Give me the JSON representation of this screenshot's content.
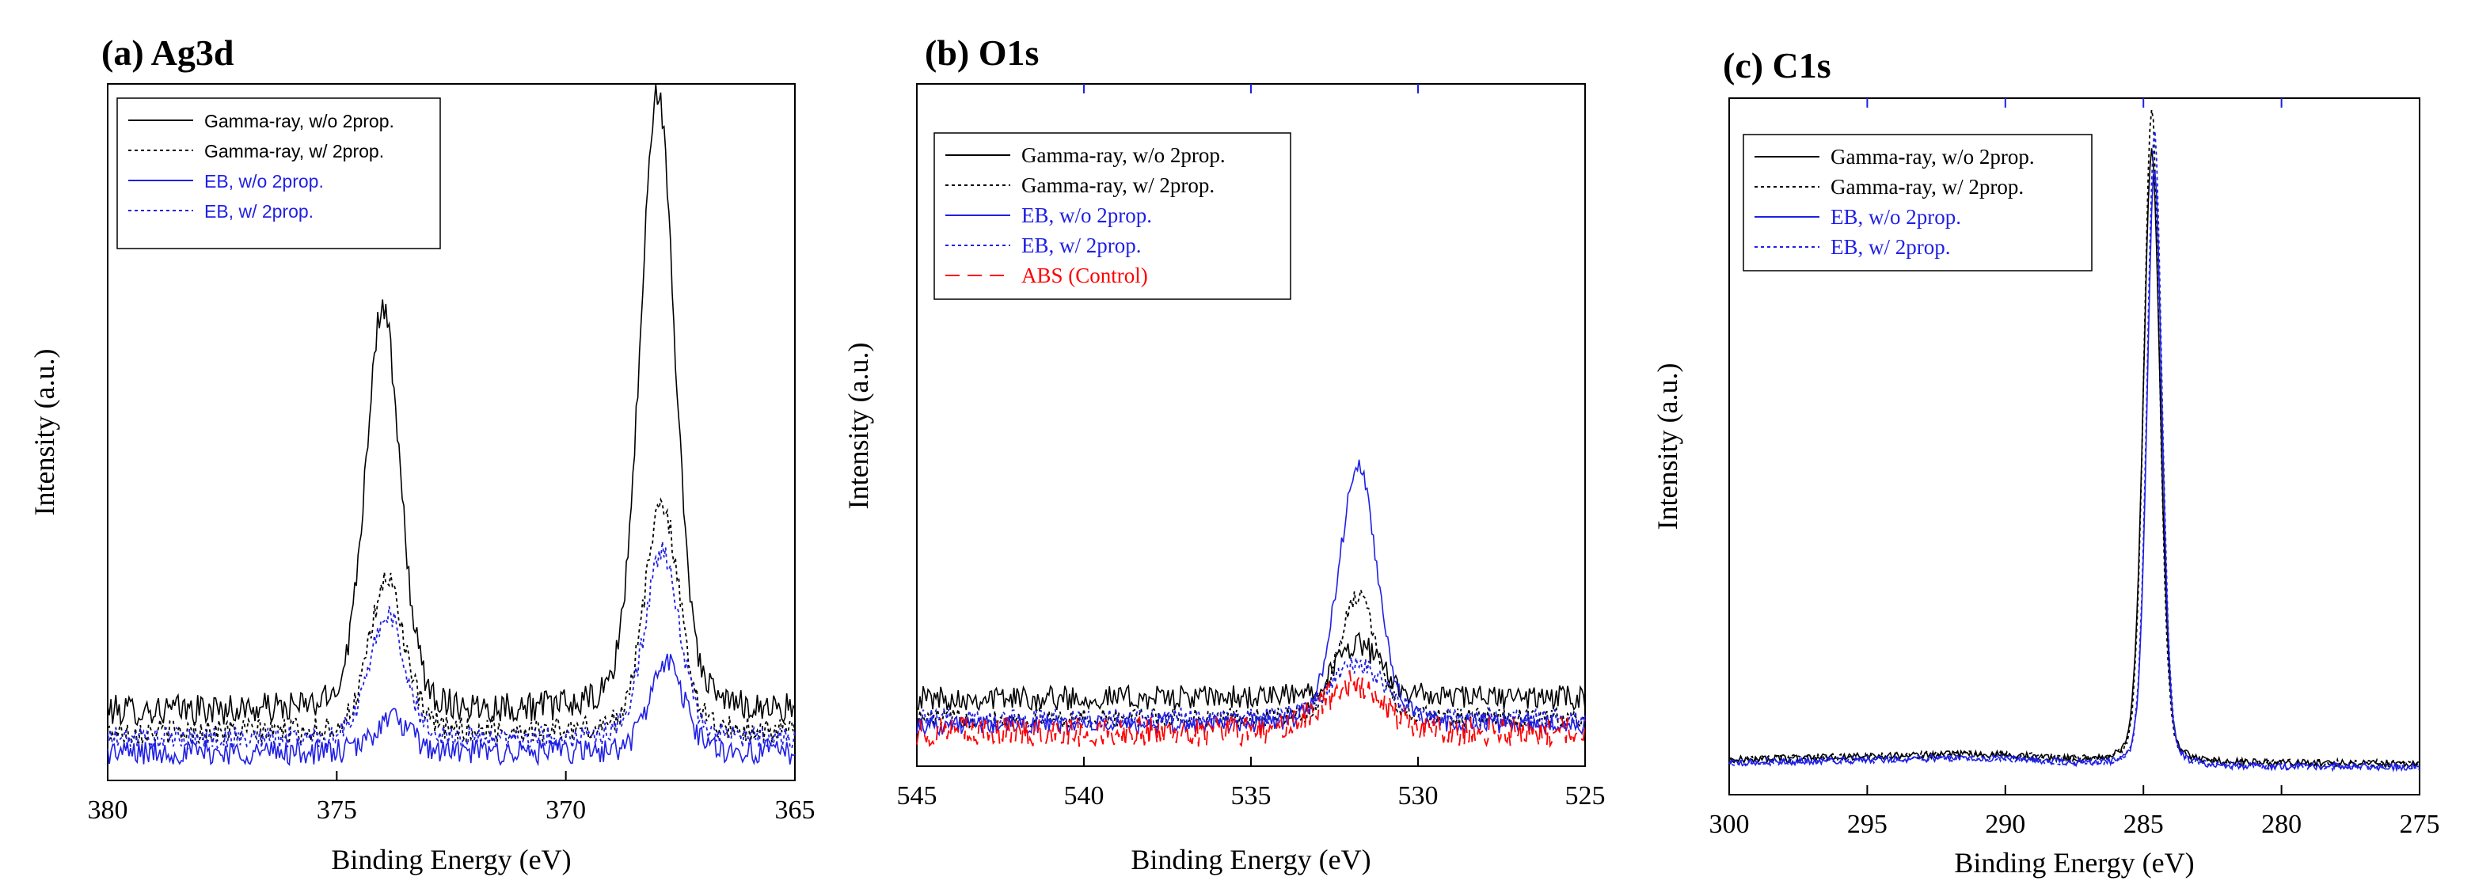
{
  "colors": {
    "black": "#000000",
    "blue": "#1f1fe6",
    "red": "#ff0000",
    "frame": "#000000",
    "top_tick": "#1f1fe6"
  },
  "chart_data": [
    {
      "type": "line",
      "title": "(a) Ag3d",
      "xlabel": "Binding Energy (eV)",
      "ylabel": "Intensity (a.u.)",
      "xlim": [
        380,
        365
      ],
      "ylim": [
        0,
        1
      ],
      "xticks": [
        380,
        375,
        370,
        365
      ],
      "xtick_labels": [
        "380",
        "375",
        "370",
        "365"
      ],
      "legend_position": "top-left",
      "legend_font": "sans",
      "series": [
        {
          "name": "Gamma-ray, w/o 2prop.",
          "color": "black",
          "dash": "solid",
          "baseline": 0.1,
          "noise": 0.022,
          "peaks": [
            {
              "center": 374.0,
              "height": 0.58,
              "width": 0.55
            },
            {
              "center": 368.0,
              "height": 0.89,
              "width": 0.55
            }
          ]
        },
        {
          "name": "Gamma-ray, w/ 2prop.",
          "color": "black",
          "dash": "dotted",
          "baseline": 0.07,
          "noise": 0.018,
          "peaks": [
            {
              "center": 373.9,
              "height": 0.22,
              "width": 0.55
            },
            {
              "center": 367.9,
              "height": 0.33,
              "width": 0.55
            }
          ]
        },
        {
          "name": "EB, w/o 2prop.",
          "color": "blue",
          "dash": "solid",
          "baseline": 0.04,
          "noise": 0.018,
          "peaks": [
            {
              "center": 373.8,
              "height": 0.05,
              "width": 0.55
            },
            {
              "center": 367.8,
              "height": 0.13,
              "width": 0.55
            }
          ]
        },
        {
          "name": "EB, w/ 2prop.",
          "color": "blue",
          "dash": "dotted",
          "baseline": 0.06,
          "noise": 0.016,
          "peaks": [
            {
              "center": 373.9,
              "height": 0.18,
              "width": 0.55
            },
            {
              "center": 367.9,
              "height": 0.27,
              "width": 0.55
            }
          ]
        }
      ]
    },
    {
      "type": "line",
      "title": "(b) O1s",
      "xlabel": "Binding Energy (eV)",
      "ylabel": "Intensity (a.u.)",
      "xlim": [
        545,
        525
      ],
      "ylim": [
        0,
        1
      ],
      "xticks": [
        545,
        540,
        535,
        530,
        525
      ],
      "xtick_labels": [
        "545",
        "540",
        "535",
        "530",
        "525"
      ],
      "legend_position": "top-left",
      "legend_font": "serif",
      "series": [
        {
          "name": "Gamma-ray, w/o 2prop.",
          "color": "black",
          "dash": "solid",
          "baseline": 0.1,
          "noise": 0.018,
          "peaks": [
            {
              "center": 531.8,
              "height": 0.08,
              "width": 1.0
            }
          ]
        },
        {
          "name": "Gamma-ray, w/ 2prop.",
          "color": "black",
          "dash": "dotted",
          "baseline": 0.07,
          "noise": 0.014,
          "peaks": [
            {
              "center": 531.8,
              "height": 0.18,
              "width": 0.8
            }
          ]
        },
        {
          "name": "EB, w/o 2prop.",
          "color": "blue",
          "dash": "solid",
          "baseline": 0.06,
          "noise": 0.014,
          "peaks": [
            {
              "center": 531.8,
              "height": 0.38,
              "width": 0.85
            }
          ]
        },
        {
          "name": "EB, w/ 2prop.",
          "color": "blue",
          "dash": "dotted",
          "baseline": 0.07,
          "noise": 0.014,
          "peaks": [
            {
              "center": 531.8,
              "height": 0.08,
              "width": 1.2
            }
          ]
        },
        {
          "name": "ABS (Control)",
          "color": "red",
          "dash": "dashed",
          "baseline": 0.05,
          "noise": 0.022,
          "peaks": [
            {
              "center": 532.0,
              "height": 0.07,
              "width": 1.3
            }
          ]
        }
      ]
    },
    {
      "type": "line",
      "title": "(c) C1s",
      "xlabel": "Binding Energy (eV)",
      "ylabel": "Intensity (a.u.)",
      "xlim": [
        300,
        275
      ],
      "ylim": [
        0,
        1
      ],
      "xticks": [
        300,
        295,
        290,
        285,
        280,
        275
      ],
      "xtick_labels": [
        "300",
        "295",
        "290",
        "285",
        "280",
        "275"
      ],
      "legend_position": "top-left",
      "legend_font": "serif",
      "series": [
        {
          "name": "Gamma-ray, w/o 2prop.",
          "color": "black",
          "dash": "solid",
          "baseline": 0.035,
          "noise": 0.005,
          "background": "step",
          "peaks": [
            {
              "center": 284.7,
              "height": 0.88,
              "width": 0.45
            }
          ]
        },
        {
          "name": "Gamma-ray, w/ 2prop.",
          "color": "black",
          "dash": "dotted",
          "baseline": 0.035,
          "noise": 0.005,
          "background": "step",
          "peaks": [
            {
              "center": 284.7,
              "height": 0.94,
              "width": 0.42
            }
          ]
        },
        {
          "name": "EB, w/o 2prop.",
          "color": "blue",
          "dash": "solid",
          "baseline": 0.03,
          "noise": 0.005,
          "background": "step",
          "peaks": [
            {
              "center": 284.6,
              "height": 0.86,
              "width": 0.4
            }
          ]
        },
        {
          "name": "EB, w/ 2prop.",
          "color": "blue",
          "dash": "dotted",
          "baseline": 0.03,
          "noise": 0.005,
          "background": "step",
          "peaks": [
            {
              "center": 284.6,
              "height": 0.91,
              "width": 0.4
            }
          ]
        }
      ]
    }
  ]
}
